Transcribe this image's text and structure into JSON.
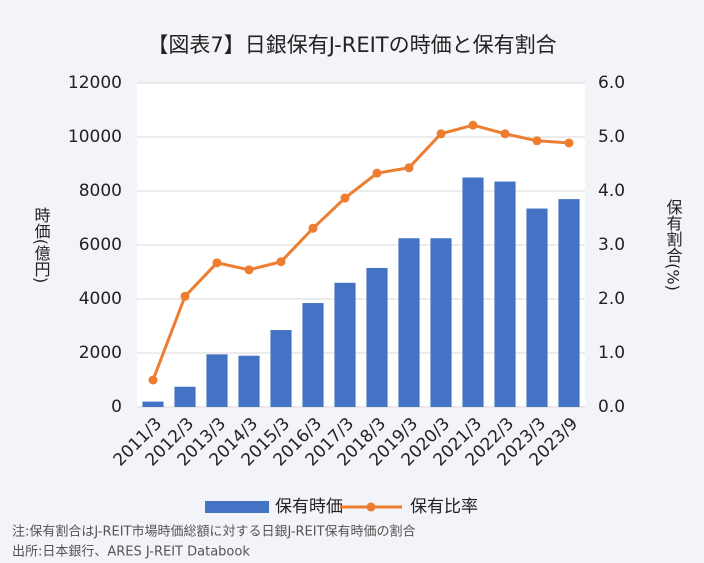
{
  "chart_data": {
    "type": "bar_line",
    "title": "【図表7】日銀保有J-REITの時価と保有割合",
    "y_label": "時価(億円)",
    "y2_label": "保有割合(%)",
    "categories": [
      "2011/3",
      "2012/3",
      "2013/3",
      "2014/3",
      "2015/3",
      "2016/3",
      "2017/3",
      "2018/3",
      "2019/3",
      "2020/3",
      "2021/3",
      "2022/3",
      "2023/3",
      "2023/9"
    ],
    "series": [
      {
        "name": "保有時価",
        "type": "bar",
        "color": "#4472c4",
        "values": [
          200,
          750,
          1950,
          1900,
          2850,
          3850,
          4600,
          5150,
          6250,
          6250,
          8500,
          8350,
          7350,
          7700
        ]
      },
      {
        "name": "保有比率",
        "type": "line",
        "axis": "y2",
        "color": "#ed7d31",
        "values": [
          0.5,
          2.05,
          2.67,
          2.54,
          2.69,
          3.31,
          3.87,
          4.33,
          4.43,
          5.06,
          5.22,
          5.06,
          4.93,
          4.89
        ]
      }
    ],
    "ylim": [
      0,
      12000
    ],
    "yticks": [
      0,
      2000,
      4000,
      6000,
      8000,
      10000,
      12000
    ],
    "y2lim": [
      0,
      6
    ],
    "y2ticks": [
      {
        "value": 0,
        "label": "0.0"
      },
      {
        "value": 1,
        "label": "1.0"
      },
      {
        "value": 2,
        "label": "2.0"
      },
      {
        "value": 3,
        "label": "3.0"
      },
      {
        "value": 4,
        "label": "4.0"
      },
      {
        "value": 5,
        "label": "5.0"
      },
      {
        "value": 6,
        "label": "6.0"
      }
    ],
    "grid": true,
    "legend": "bottom",
    "notes": [
      "注:保有割合はJ-REIT市場時価総額に対する日銀J-REIT保有時価の割合",
      "出所:日本銀行、ARES J-REIT Databook"
    ]
  }
}
